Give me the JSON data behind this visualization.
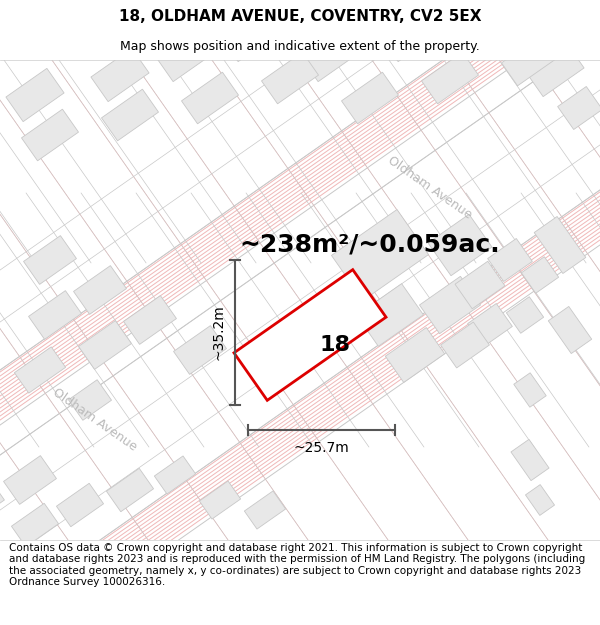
{
  "title_line1": "18, OLDHAM AVENUE, COVENTRY, CV2 5EX",
  "title_line2": "Map shows position and indicative extent of the property.",
  "area_text": "~238m²/~0.059ac.",
  "dim_width": "~25.7m",
  "dim_height": "~35.2m",
  "property_number": "18",
  "footer_text": "Contains OS data © Crown copyright and database right 2021. This information is subject to Crown copyright and database rights 2023 and is reproduced with the permission of HM Land Registry. The polygons (including the associated geometry, namely x, y co-ordinates) are subject to Crown copyright and database rights 2023 Ordnance Survey 100026316.",
  "map_bg": "#ffffff",
  "plot_outline_color": "#dd0000",
  "dim_line_color": "#555555",
  "building_fill": "#e8e8e8",
  "building_edge_color": "#c8c8c8",
  "road_line_color": "#f0b8b8",
  "road_boundary_color": "#c8c8c8",
  "road_label_color": "#bbbbbb",
  "title_fontsize": 11,
  "subtitle_fontsize": 9,
  "area_fontsize": 18,
  "dim_fontsize": 10,
  "footer_fontsize": 7.5,
  "prop_number_fontsize": 16
}
